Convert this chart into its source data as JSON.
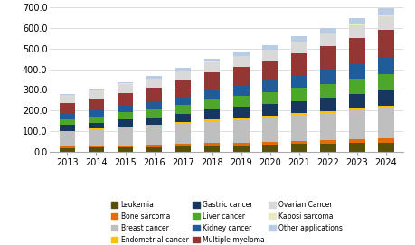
{
  "years": [
    2013,
    2014,
    2015,
    2016,
    2017,
    2018,
    2019,
    2020,
    2021,
    2022,
    2023,
    2024
  ],
  "segments": {
    "Leukemia": [
      18,
      20,
      22,
      24,
      27,
      30,
      32,
      35,
      38,
      40,
      43,
      46
    ],
    "Bone sarcoma": [
      8,
      9,
      10,
      11,
      12,
      13,
      14,
      15,
      16,
      17,
      18,
      19
    ],
    "Breast cancer": [
      72,
      78,
      85,
      90,
      98,
      108,
      112,
      118,
      125,
      132,
      140,
      148
    ],
    "Endometrial cancer": [
      4,
      5,
      6,
      7,
      8,
      8,
      9,
      9,
      10,
      10,
      11,
      12
    ],
    "Gastric cancer": [
      28,
      30,
      33,
      36,
      40,
      45,
      50,
      53,
      58,
      62,
      67,
      72
    ],
    "Liver cancer": [
      28,
      30,
      35,
      38,
      44,
      48,
      53,
      57,
      63,
      68,
      74,
      80
    ],
    "Kidney cancer": [
      28,
      30,
      33,
      36,
      40,
      47,
      52,
      57,
      62,
      68,
      73,
      78
    ],
    "Multiple myeloma": [
      52,
      57,
      62,
      67,
      76,
      85,
      90,
      95,
      105,
      115,
      125,
      135
    ],
    "Ovarian Cancer": [
      38,
      40,
      43,
      45,
      47,
      50,
      52,
      54,
      57,
      60,
      63,
      66
    ],
    "Kaposi sarcoma": [
      2,
      2,
      2,
      2,
      2,
      2,
      2,
      2,
      2,
      2,
      3,
      3
    ],
    "Other applications": [
      4,
      6,
      8,
      10,
      13,
      16,
      18,
      20,
      23,
      28,
      32,
      38
    ]
  },
  "colors": {
    "Leukemia": "#595008",
    "Bone sarcoma": "#e36c09",
    "Breast cancer": "#bfbfbf",
    "Endometrial cancer": "#ffc000",
    "Gastric cancer": "#17375e",
    "Liver cancer": "#4ea72a",
    "Kidney cancer": "#1f5c99",
    "Multiple myeloma": "#943634",
    "Ovarian Cancer": "#d9d9d9",
    "Kaposi sarcoma": "#ebe9c4",
    "Other applications": "#b8cce4"
  },
  "ylim": [
    0,
    700
  ],
  "yticks": [
    0,
    100,
    200,
    300,
    400,
    500,
    600,
    700
  ],
  "ytick_labels": [
    "0.0",
    "100.0",
    "200.0",
    "300.0",
    "400.0",
    "500.0",
    "600.0",
    "700.0"
  ],
  "legend_order": [
    "Leukemia",
    "Bone sarcoma",
    "Breast cancer",
    "Endometrial cancer",
    "Gastric cancer",
    "Liver cancer",
    "Kidney cancer",
    "Multiple myeloma",
    "Ovarian Cancer",
    "Kaposi sarcoma",
    "Other applications"
  ],
  "bar_width": 0.55
}
